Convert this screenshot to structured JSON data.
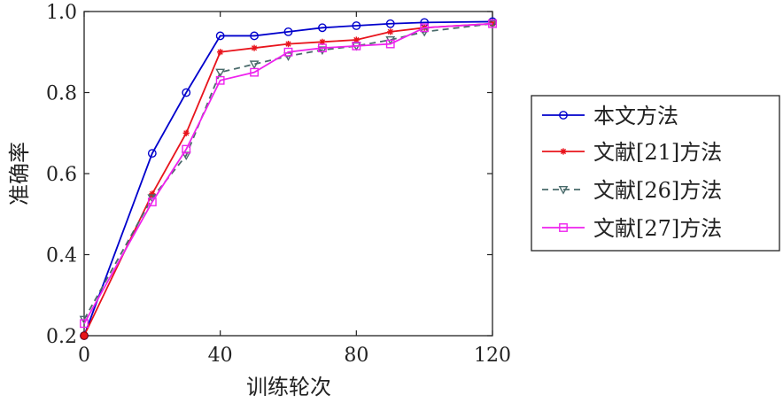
{
  "chart_data": {
    "type": "line",
    "title": "",
    "xlabel": "训练轮次",
    "ylabel": "准确率",
    "xlim": [
      0,
      120
    ],
    "ylim": [
      0.2,
      1.0
    ],
    "xticks": [
      0,
      40,
      80,
      120
    ],
    "yticks": [
      0.2,
      0.4,
      0.6,
      0.8,
      1.0
    ],
    "xtick_labels": [
      "0",
      "40",
      "80",
      "120"
    ],
    "ytick_labels": [
      "0.2",
      "0.4",
      "0.6",
      "0.8",
      "1.0"
    ],
    "grid": false,
    "legend_position": "right",
    "series": [
      {
        "name": "本文方法",
        "color": "#0000cc",
        "marker": "circle",
        "dash": "solid",
        "x": [
          0,
          20,
          30,
          40,
          50,
          60,
          70,
          80,
          90,
          100,
          120
        ],
        "y": [
          0.2,
          0.65,
          0.8,
          0.94,
          0.94,
          0.95,
          0.96,
          0.965,
          0.97,
          0.973,
          0.975
        ]
      },
      {
        "name": "文献[21]方法",
        "color": "#e8141c",
        "marker": "star",
        "dash": "solid",
        "x": [
          0,
          20,
          30,
          40,
          50,
          60,
          70,
          80,
          90,
          100,
          120
        ],
        "y": [
          0.2,
          0.55,
          0.7,
          0.9,
          0.91,
          0.92,
          0.925,
          0.93,
          0.95,
          0.96,
          0.97
        ]
      },
      {
        "name": "文献[26]方法",
        "color": "#4a6b6b",
        "marker": "triangle-down",
        "dash": "dashed",
        "x": [
          0,
          20,
          30,
          40,
          50,
          60,
          70,
          80,
          90,
          100,
          120
        ],
        "y": [
          0.24,
          0.54,
          0.645,
          0.85,
          0.87,
          0.89,
          0.905,
          0.915,
          0.93,
          0.95,
          0.97
        ]
      },
      {
        "name": "文献[27]方法",
        "color": "#ee22ee",
        "marker": "square",
        "dash": "solid",
        "x": [
          0,
          20,
          30,
          40,
          50,
          60,
          70,
          80,
          90,
          100,
          120
        ],
        "y": [
          0.23,
          0.53,
          0.66,
          0.83,
          0.85,
          0.9,
          0.91,
          0.915,
          0.92,
          0.96,
          0.97
        ]
      }
    ]
  }
}
